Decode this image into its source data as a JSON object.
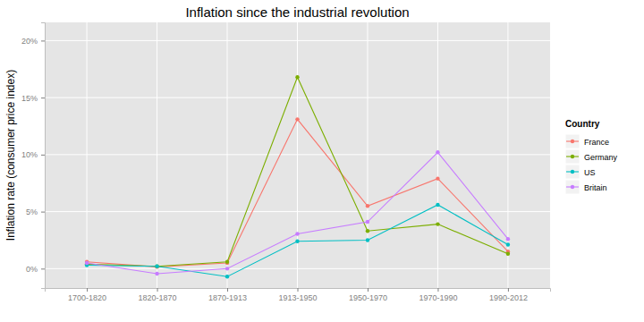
{
  "chart_data": {
    "type": "line",
    "title": "Inflation since the industrial revolution",
    "y_label": "Inflation rate (consumer price index)",
    "legend_title": "Country",
    "categories": [
      "1700-1820",
      "1820-1870",
      "1870-1913",
      "1913-1950",
      "1950-1970",
      "1970-1990",
      "1990-2012"
    ],
    "series": [
      {
        "name": "France",
        "color": "#F8766D",
        "marker": "circle",
        "values": [
          0.6,
          0.15,
          0.5,
          13.1,
          5.5,
          7.9,
          1.5
        ]
      },
      {
        "name": "Germany",
        "color": "#7CAE00",
        "marker": "circle",
        "values": [
          0.4,
          0.2,
          0.6,
          16.8,
          3.3,
          3.9,
          1.3
        ]
      },
      {
        "name": "US",
        "color": "#00BFC4",
        "marker": "circle",
        "values": [
          0.3,
          0.2,
          -0.7,
          2.4,
          2.5,
          5.6,
          2.1
        ]
      },
      {
        "name": "Britain",
        "color": "#C77CFF",
        "marker": "circle",
        "values": [
          0.5,
          -0.45,
          0.0,
          3.05,
          4.1,
          10.2,
          2.6
        ]
      }
    ],
    "ylim": [
      -1.7,
      21.6
    ],
    "yticks": [
      {
        "value": 0,
        "label": "0%"
      },
      {
        "value": 5,
        "label": "5%"
      },
      {
        "value": 10,
        "label": "10%"
      },
      {
        "value": 15,
        "label": "15%"
      },
      {
        "value": 20,
        "label": "20%"
      }
    ],
    "grid": true,
    "legend": "right"
  }
}
